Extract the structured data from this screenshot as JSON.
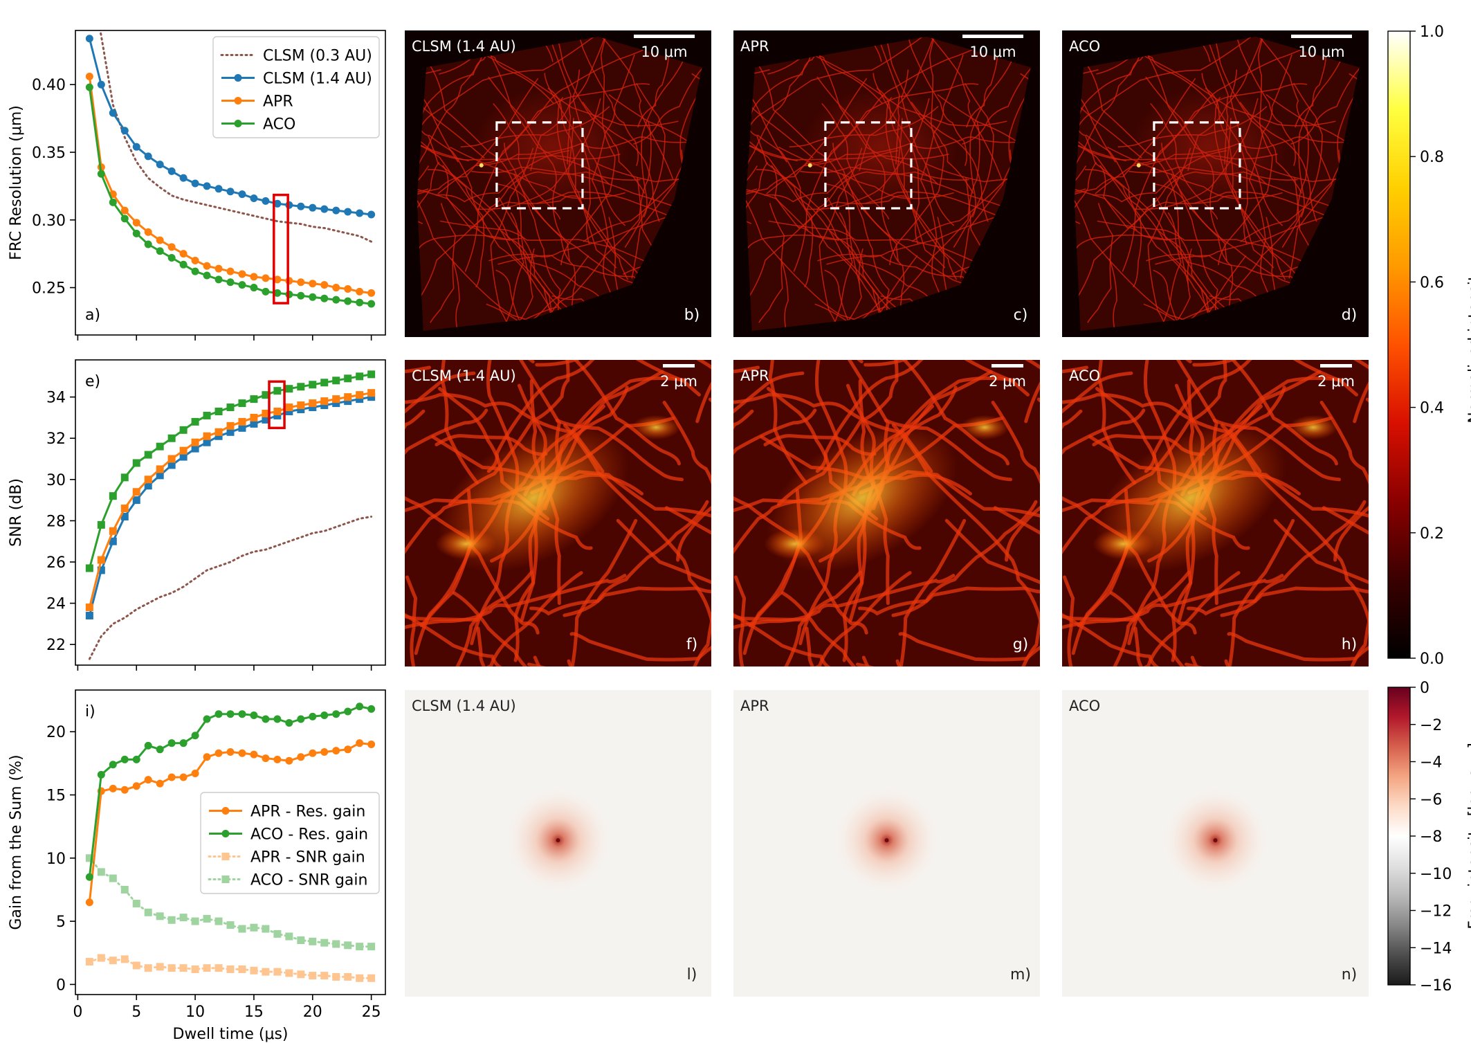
{
  "figure": {
    "colors": {
      "clsm03": "#8c564b",
      "clsm14": "#1f77b4",
      "apr": "#ff7f0e",
      "aco": "#2ca02c",
      "highlight": "#e00000"
    }
  },
  "chart_data": [
    {
      "id": "a",
      "type": "line",
      "panel_label": "a)",
      "xlabel": "",
      "ylabel": "FRC Resolution (μm)",
      "xlim": [
        -0.2,
        26.2
      ],
      "ylim": [
        0.215,
        0.44
      ],
      "xticks": [
        0,
        5,
        10,
        15,
        20,
        25
      ],
      "yticks": [
        0.25,
        0.3,
        0.35,
        0.4
      ],
      "ytick_labels": [
        "0.25",
        "0.30",
        "0.35",
        "0.40"
      ],
      "show_xtick_labels": false,
      "legend_placement": "top-right",
      "highlight_box": {
        "x": [
          16.7,
          17.9
        ],
        "y": [
          0.2385,
          0.3185
        ]
      },
      "series": [
        {
          "name": "CLSM (0.3 AU)",
          "color_key": "clsm03",
          "style": "dotted",
          "marker": "none",
          "x": [
            1,
            2,
            3,
            4,
            5,
            6,
            7,
            8,
            9,
            10,
            11,
            12,
            13,
            14,
            15,
            16,
            17,
            18,
            19,
            20,
            21,
            22,
            23,
            24,
            25
          ],
          "y": [
            0.48,
            0.436,
            0.385,
            0.361,
            0.343,
            0.331,
            0.324,
            0.318,
            0.315,
            0.313,
            0.311,
            0.309,
            0.307,
            0.305,
            0.303,
            0.301,
            0.299,
            0.298,
            0.297,
            0.295,
            0.294,
            0.292,
            0.29,
            0.288,
            0.284
          ]
        },
        {
          "name": "CLSM (1.4 AU)",
          "color_key": "clsm14",
          "style": "solid",
          "marker": "circle",
          "x": [
            1,
            2,
            3,
            4,
            5,
            6,
            7,
            8,
            9,
            10,
            11,
            12,
            13,
            14,
            15,
            16,
            17,
            18,
            19,
            20,
            21,
            22,
            23,
            24,
            25
          ],
          "y": [
            0.434,
            0.4,
            0.379,
            0.366,
            0.354,
            0.347,
            0.341,
            0.336,
            0.331,
            0.327,
            0.325,
            0.323,
            0.321,
            0.319,
            0.316,
            0.314,
            0.312,
            0.311,
            0.31,
            0.309,
            0.308,
            0.307,
            0.306,
            0.305,
            0.304
          ]
        },
        {
          "name": "APR",
          "color_key": "apr",
          "style": "solid",
          "marker": "circle",
          "x": [
            1,
            2,
            3,
            4,
            5,
            6,
            7,
            8,
            9,
            10,
            11,
            12,
            13,
            14,
            15,
            16,
            17,
            18,
            19,
            20,
            21,
            22,
            23,
            24,
            25
          ],
          "y": [
            0.406,
            0.339,
            0.319,
            0.307,
            0.298,
            0.291,
            0.285,
            0.28,
            0.275,
            0.27,
            0.266,
            0.264,
            0.262,
            0.26,
            0.258,
            0.257,
            0.256,
            0.255,
            0.254,
            0.253,
            0.252,
            0.25,
            0.249,
            0.247,
            0.246
          ]
        },
        {
          "name": "ACO",
          "color_key": "aco",
          "style": "solid",
          "marker": "circle",
          "x": [
            1,
            2,
            3,
            4,
            5,
            6,
            7,
            8,
            9,
            10,
            11,
            12,
            13,
            14,
            15,
            16,
            17,
            18,
            19,
            20,
            21,
            22,
            23,
            24,
            25
          ],
          "y": [
            0.398,
            0.334,
            0.313,
            0.301,
            0.29,
            0.282,
            0.277,
            0.272,
            0.267,
            0.262,
            0.259,
            0.256,
            0.254,
            0.252,
            0.25,
            0.247,
            0.246,
            0.245,
            0.244,
            0.243,
            0.242,
            0.241,
            0.24,
            0.239,
            0.238
          ]
        }
      ]
    },
    {
      "id": "e",
      "type": "line",
      "panel_label": "e)",
      "xlabel": "",
      "ylabel": "SNR (dB)",
      "xlim": [
        -0.2,
        26.2
      ],
      "ylim": [
        21.0,
        35.8
      ],
      "xticks": [
        0,
        5,
        10,
        15,
        20,
        25
      ],
      "yticks": [
        22,
        24,
        26,
        28,
        30,
        32,
        34
      ],
      "ytick_labels": [
        "22",
        "24",
        "26",
        "28",
        "30",
        "32",
        "34"
      ],
      "show_xtick_labels": false,
      "highlight_box": {
        "x": [
          16.3,
          17.6
        ],
        "y": [
          32.5,
          34.75
        ]
      },
      "series": [
        {
          "name": "",
          "color_key": "clsm03",
          "style": "dotted",
          "marker": "none",
          "x": [
            1,
            2,
            3,
            4,
            5,
            6,
            7,
            8,
            9,
            10,
            11,
            12,
            13,
            14,
            15,
            16,
            17,
            18,
            19,
            20,
            21,
            22,
            23,
            24,
            25
          ],
          "y": [
            21.3,
            22.4,
            23.0,
            23.3,
            23.7,
            24.0,
            24.3,
            24.5,
            24.8,
            25.2,
            25.6,
            25.8,
            26.0,
            26.3,
            26.5,
            26.6,
            26.8,
            27.0,
            27.2,
            27.4,
            27.5,
            27.7,
            27.9,
            28.1,
            28.2
          ]
        },
        {
          "name": "",
          "color_key": "clsm14",
          "style": "solid",
          "marker": "square",
          "x": [
            1,
            2,
            3,
            4,
            5,
            6,
            7,
            8,
            9,
            10,
            11,
            12,
            13,
            14,
            15,
            16,
            17,
            18,
            19,
            20,
            21,
            22,
            23,
            24,
            25
          ],
          "y": [
            23.4,
            25.6,
            27.0,
            28.2,
            29.0,
            29.7,
            30.2,
            30.7,
            31.1,
            31.5,
            31.8,
            32.1,
            32.3,
            32.5,
            32.7,
            32.9,
            33.1,
            33.3,
            33.4,
            33.5,
            33.6,
            33.7,
            33.8,
            33.9,
            34.0
          ]
        },
        {
          "name": "",
          "color_key": "apr",
          "style": "solid",
          "marker": "square",
          "x": [
            1,
            2,
            3,
            4,
            5,
            6,
            7,
            8,
            9,
            10,
            11,
            12,
            13,
            14,
            15,
            16,
            17,
            18,
            19,
            20,
            21,
            22,
            23,
            24,
            25
          ],
          "y": [
            23.8,
            26.1,
            27.5,
            28.6,
            29.4,
            30.0,
            30.5,
            31.0,
            31.4,
            31.8,
            32.1,
            32.3,
            32.6,
            32.8,
            33.0,
            33.2,
            33.3,
            33.5,
            33.6,
            33.7,
            33.8,
            33.9,
            34.0,
            34.1,
            34.2
          ]
        },
        {
          "name": "",
          "color_key": "aco",
          "style": "solid",
          "marker": "square",
          "x": [
            1,
            2,
            3,
            4,
            5,
            6,
            7,
            8,
            9,
            10,
            11,
            12,
            13,
            14,
            15,
            16,
            17,
            18,
            19,
            20,
            21,
            22,
            23,
            24,
            25
          ],
          "y": [
            25.7,
            27.8,
            29.2,
            30.1,
            30.8,
            31.2,
            31.6,
            32.0,
            32.4,
            32.8,
            33.1,
            33.3,
            33.5,
            33.7,
            33.9,
            34.1,
            34.3,
            34.4,
            34.5,
            34.6,
            34.7,
            34.8,
            34.9,
            35.0,
            35.1
          ]
        }
      ]
    },
    {
      "id": "i",
      "type": "line",
      "panel_label": "i)",
      "xlabel": "Dwell time (μs)",
      "ylabel": "Gain from the Sum (%)",
      "xlim": [
        -0.2,
        26.2
      ],
      "ylim": [
        -0.8,
        23.3
      ],
      "xticks": [
        0,
        5,
        10,
        15,
        20,
        25
      ],
      "xtick_labels": [
        "0",
        "5",
        "10",
        "15",
        "20",
        "25"
      ],
      "yticks": [
        0,
        5,
        10,
        15,
        20
      ],
      "ytick_labels": [
        "0",
        "5",
        "10",
        "15",
        "20"
      ],
      "show_xtick_labels": true,
      "legend_placement": "center-right",
      "series": [
        {
          "name": "APR - Res. gain",
          "color_key": "apr",
          "style": "solid",
          "marker": "circle",
          "opacity": 1,
          "x": [
            1,
            2,
            3,
            4,
            5,
            6,
            7,
            8,
            9,
            10,
            11,
            12,
            13,
            14,
            15,
            16,
            17,
            18,
            19,
            20,
            21,
            22,
            23,
            24,
            25
          ],
          "y": [
            6.5,
            15.3,
            15.5,
            15.4,
            15.7,
            16.2,
            15.9,
            16.4,
            16.4,
            16.7,
            18.0,
            18.3,
            18.4,
            18.3,
            18.2,
            17.9,
            17.8,
            17.7,
            18.0,
            18.3,
            18.4,
            18.5,
            18.6,
            19.1,
            19.0
          ]
        },
        {
          "name": "ACO - Res. gain",
          "color_key": "aco",
          "style": "solid",
          "marker": "circle",
          "opacity": 1,
          "x": [
            1,
            2,
            3,
            4,
            5,
            6,
            7,
            8,
            9,
            10,
            11,
            12,
            13,
            14,
            15,
            16,
            17,
            18,
            19,
            20,
            21,
            22,
            23,
            24,
            25
          ],
          "y": [
            8.5,
            16.6,
            17.4,
            17.8,
            17.8,
            18.9,
            18.6,
            19.1,
            19.1,
            19.7,
            21.0,
            21.4,
            21.4,
            21.4,
            21.3,
            21.0,
            21.0,
            20.7,
            21.0,
            21.2,
            21.3,
            21.4,
            21.6,
            22.0,
            21.8
          ]
        },
        {
          "name": "APR - SNR gain",
          "color_key": "apr",
          "style": "dotted",
          "marker": "square",
          "opacity": 0.45,
          "x": [
            1,
            2,
            3,
            4,
            5,
            6,
            7,
            8,
            9,
            10,
            11,
            12,
            13,
            14,
            15,
            16,
            17,
            18,
            19,
            20,
            21,
            22,
            23,
            24,
            25
          ],
          "y": [
            1.8,
            2.1,
            1.9,
            2.0,
            1.5,
            1.3,
            1.4,
            1.3,
            1.3,
            1.2,
            1.3,
            1.3,
            1.2,
            1.2,
            1.1,
            1.0,
            1.0,
            0.9,
            0.8,
            0.7,
            0.7,
            0.6,
            0.6,
            0.5,
            0.5
          ]
        },
        {
          "name": "ACO - SNR gain",
          "color_key": "aco",
          "style": "dotted",
          "marker": "square",
          "opacity": 0.45,
          "x": [
            1,
            2,
            3,
            4,
            5,
            6,
            7,
            8,
            9,
            10,
            11,
            12,
            13,
            14,
            15,
            16,
            17,
            18,
            19,
            20,
            21,
            22,
            23,
            24,
            25
          ],
          "y": [
            10.0,
            8.9,
            8.4,
            7.5,
            6.4,
            5.7,
            5.4,
            5.1,
            5.3,
            5.0,
            5.2,
            5.0,
            4.7,
            4.4,
            4.5,
            4.4,
            4.0,
            3.8,
            3.5,
            3.4,
            3.3,
            3.2,
            3.1,
            3.0,
            3.0
          ]
        }
      ]
    },
    {
      "id": "cb1",
      "type": "colorbar",
      "label": "Normalized intensity",
      "range": [
        0.0,
        1.0
      ],
      "ticks": [
        0.0,
        0.2,
        0.4,
        0.6,
        0.8,
        1.0
      ],
      "tick_labels": [
        "0.0",
        "0.2",
        "0.4",
        "0.6",
        "0.8",
        "1.0"
      ],
      "colormap": "hot",
      "colormap_stops": [
        "#000000",
        "#3a0000",
        "#8a0000",
        "#d81000",
        "#ff5200",
        "#ff9a00",
        "#ffd000",
        "#ffff40",
        "#ffffff"
      ]
    },
    {
      "id": "cb2",
      "type": "colorbar",
      "label": "Freq. intensity [log. a.u.]",
      "range": [
        -16,
        0
      ],
      "ticks": [
        -16,
        -14,
        -12,
        -10,
        -8,
        -6,
        -4,
        -2,
        0
      ],
      "tick_labels": [
        "−16",
        "−14",
        "−12",
        "−10",
        "−8",
        "−6",
        "−4",
        "−2",
        "0"
      ],
      "colormap": "RdGy",
      "colormap_stops": [
        "#1a1a1a",
        "#4d4d4d",
        "#878787",
        "#bababa",
        "#e0e0e0",
        "#ffffff",
        "#fddbc7",
        "#f4a582",
        "#d6604d",
        "#b2182b",
        "#67001f"
      ]
    }
  ],
  "images": {
    "row1": [
      {
        "title": "CLSM (1.4 AU)",
        "label": "b)",
        "scalebar": "10 μm"
      },
      {
        "title": "APR",
        "label": "c)",
        "scalebar": "10 μm"
      },
      {
        "title": "ACO",
        "label": "d)",
        "scalebar": "10 μm"
      }
    ],
    "row2": [
      {
        "title": "CLSM (1.4 AU)",
        "label": "f)",
        "scalebar": "2 μm"
      },
      {
        "title": "APR",
        "label": "g)",
        "scalebar": "2 μm"
      },
      {
        "title": "ACO",
        "label": "h)",
        "scalebar": "2 μm"
      }
    ],
    "row3": [
      {
        "title": "CLSM (1.4 AU)",
        "label": "l)"
      },
      {
        "title": "APR",
        "label": "m)"
      },
      {
        "title": "ACO",
        "label": "n)"
      }
    ]
  }
}
